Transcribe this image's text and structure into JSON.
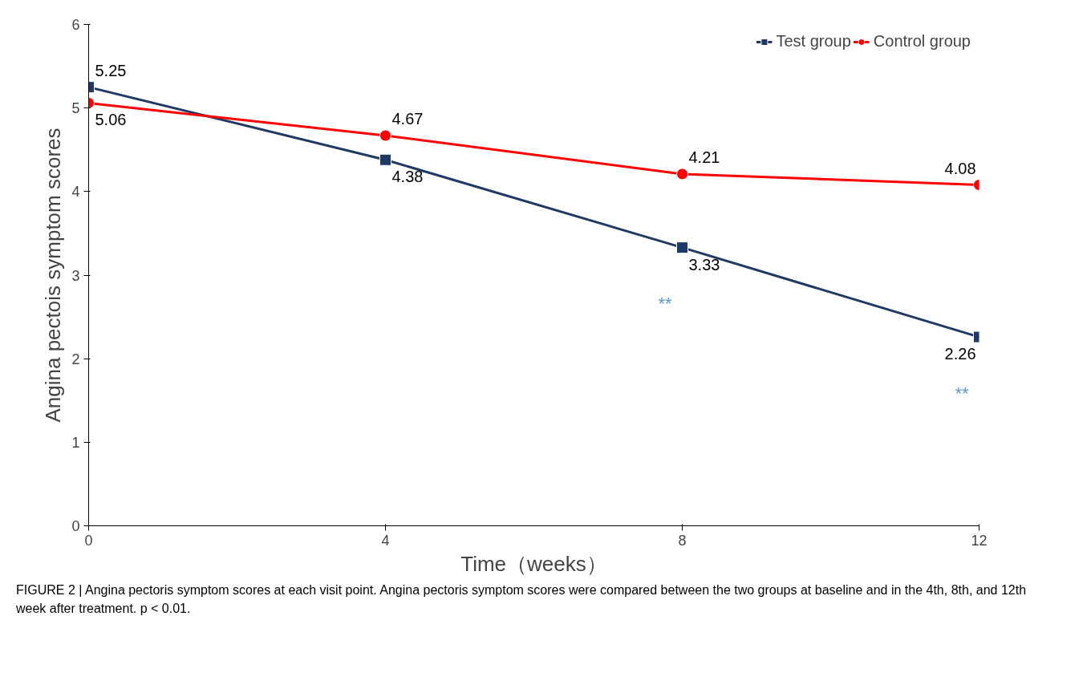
{
  "chart_data": {
    "type": "line",
    "xlabel": "Time（weeks）",
    "ylabel": "Angina pectois symptom scores",
    "x": [
      0,
      4,
      8,
      12
    ],
    "series": [
      {
        "name": "Test group",
        "color": "#1f3864",
        "marker": "square",
        "values": [
          5.25,
          4.38,
          3.33,
          2.26
        ]
      },
      {
        "name": "Control group",
        "color": "#ff0000",
        "marker": "circle",
        "values": [
          5.06,
          4.67,
          4.21,
          4.08
        ]
      }
    ],
    "xlim": [
      0,
      12
    ],
    "xticks": [
      0,
      4,
      8,
      12
    ],
    "ylim": [
      0,
      6
    ],
    "yticks": [
      0,
      1,
      2,
      3,
      4,
      5,
      6
    ],
    "grid": false,
    "legend": "top right",
    "data_labels": true,
    "line_style": "solid",
    "annotations": [
      {
        "text": "**",
        "x": 8,
        "y": 3.33
      },
      {
        "text": "**",
        "x": 12,
        "y": 2.26
      },
      "FIGURE 2 | Angina pectoris symptom scores at each visit point. Angina pectoris symptom scores were compared between the two groups at baseline and in the 4th, 8th, and 12th week after treatment. p < 0.01."
    ]
  }
}
